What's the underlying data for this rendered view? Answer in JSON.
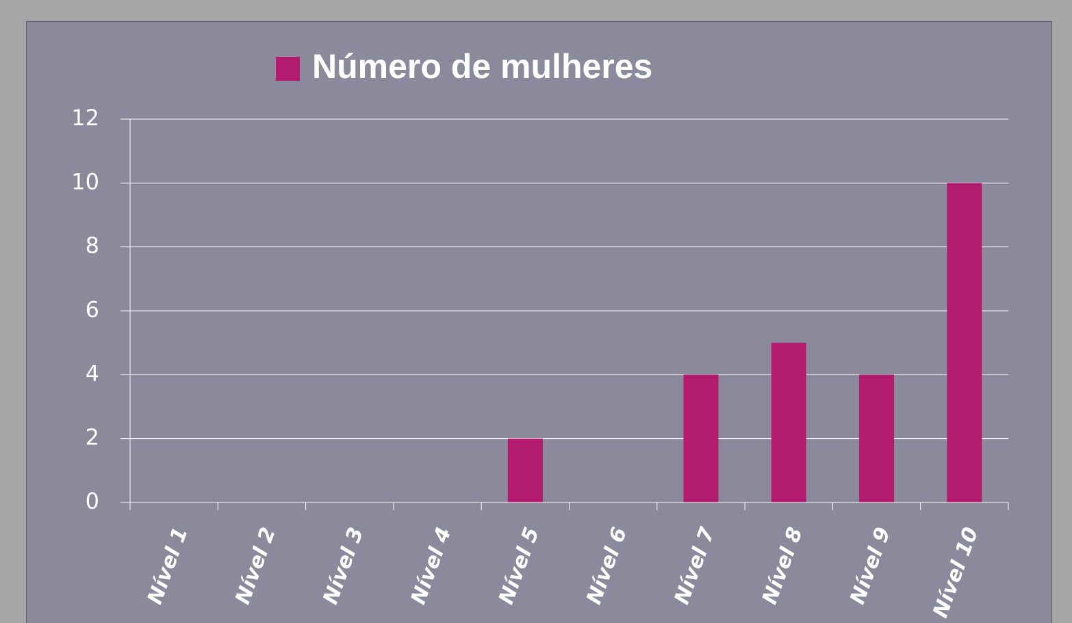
{
  "chart_data": {
    "type": "bar",
    "categories": [
      "Nível 1",
      "Nível 2",
      "Nível 3",
      "Nível 4",
      "Nível 5",
      "Nível 6",
      "Nível 7",
      "Nível 8",
      "Nível 9",
      "Nível 10"
    ],
    "series": [
      {
        "name": "Número de mulheres",
        "color": "#b31b6e",
        "values": [
          0,
          0,
          0,
          0,
          2,
          0,
          4,
          5,
          4,
          10
        ]
      }
    ],
    "ylim": [
      0,
      12
    ],
    "yticks": [
      0,
      2,
      4,
      6,
      8,
      10,
      12
    ],
    "grid": true,
    "legend": "top"
  }
}
